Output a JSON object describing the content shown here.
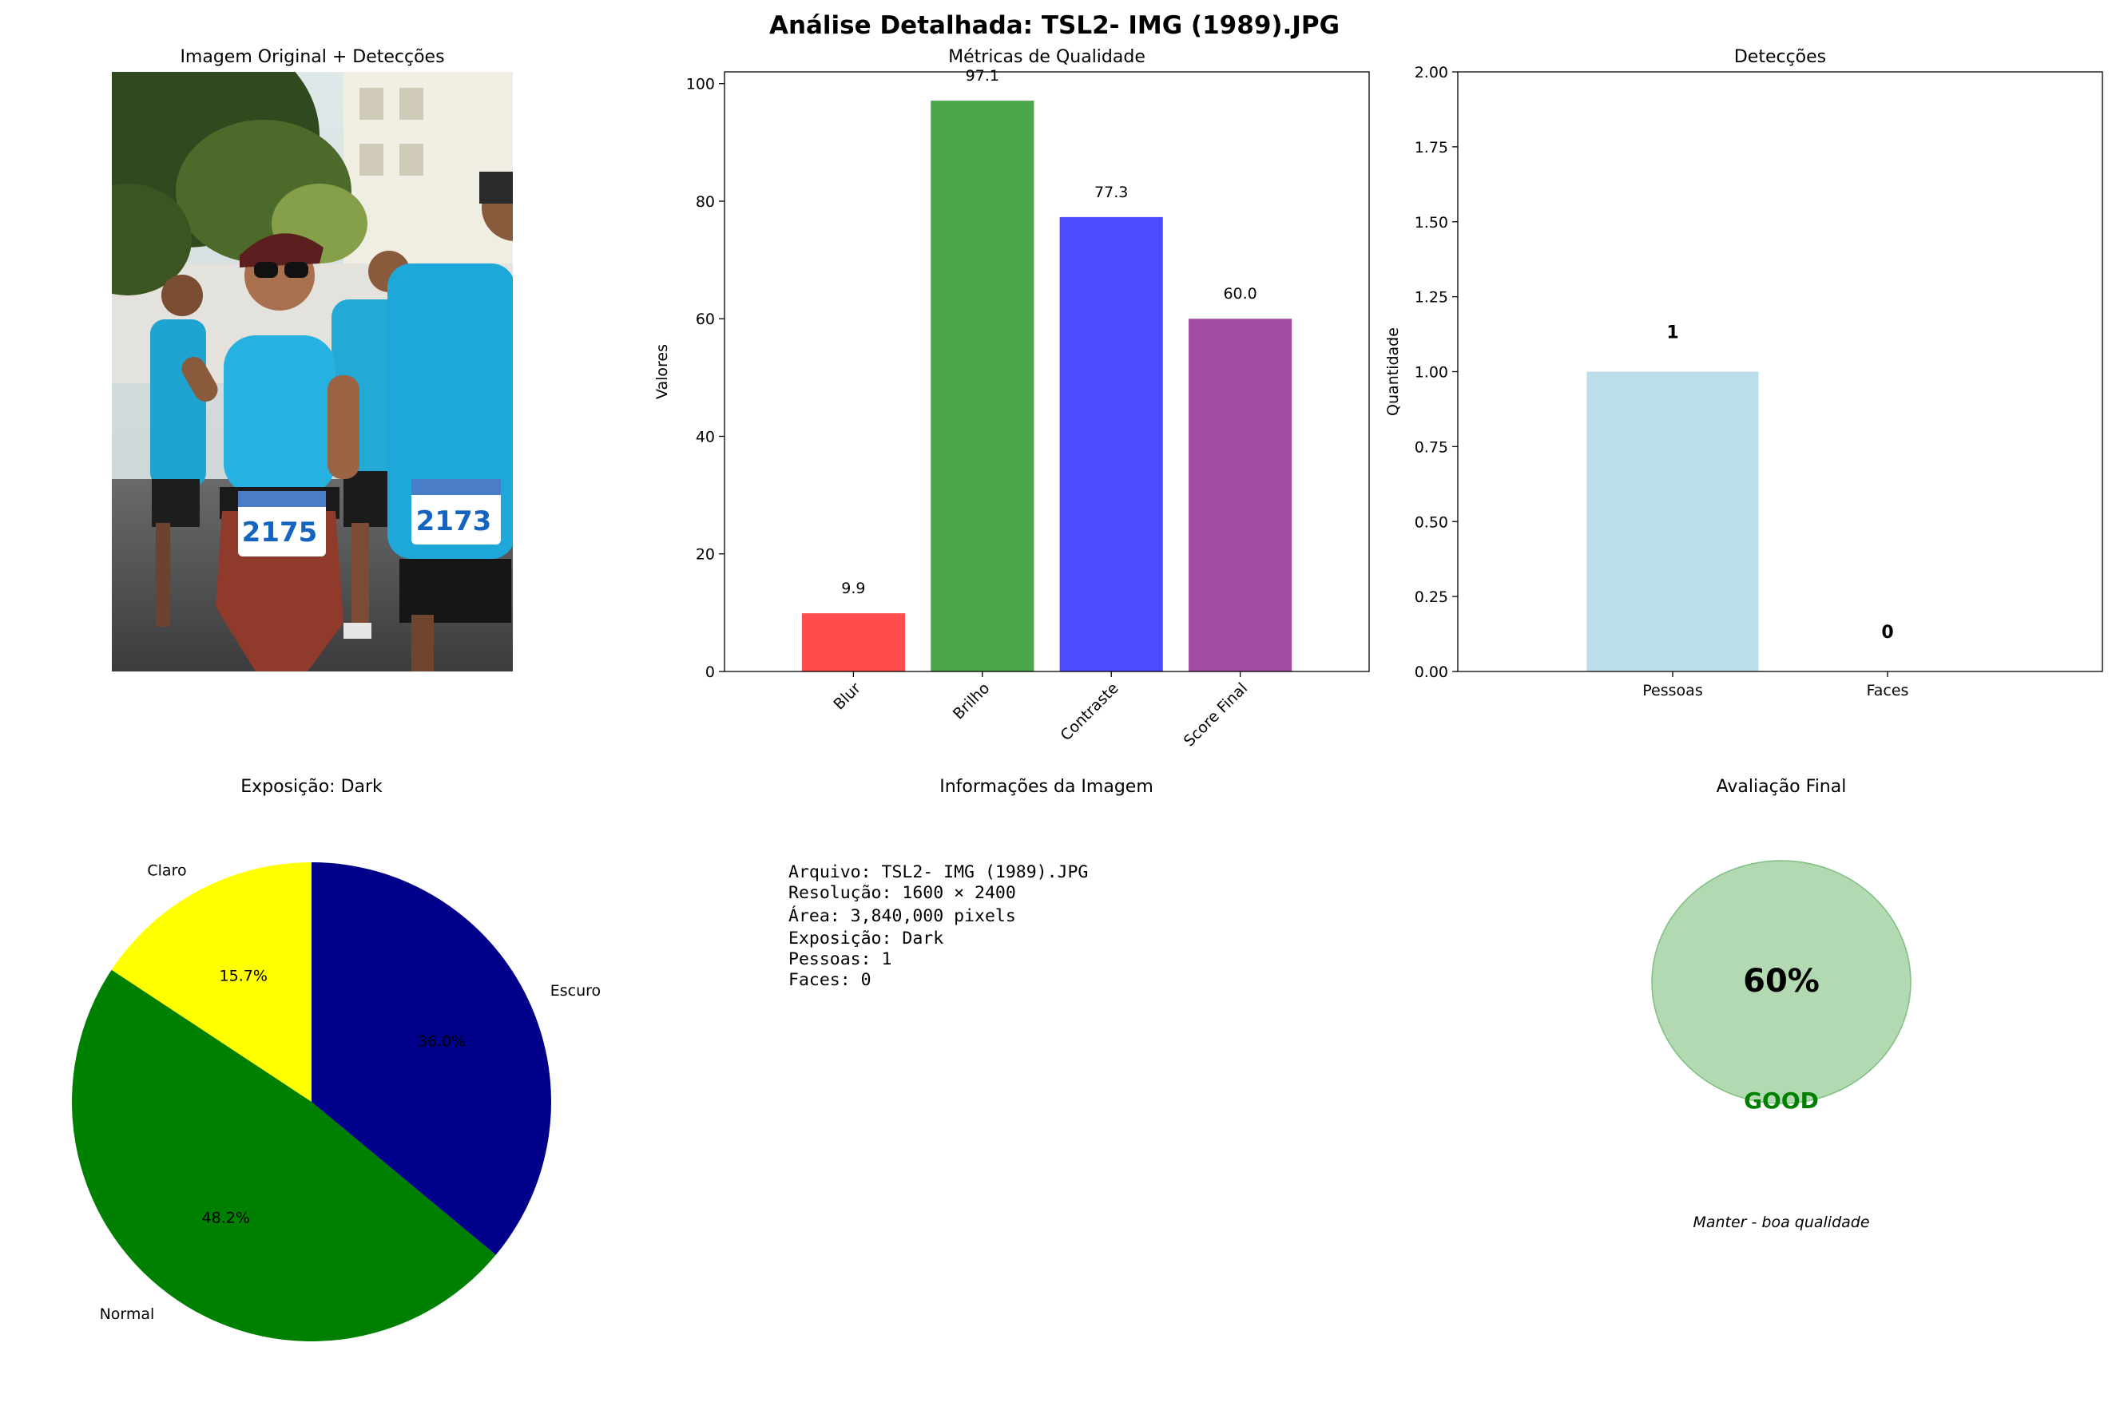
{
  "figure": {
    "suptitle": "Análise Detalhada: TSL2- IMG  (1989).JPG"
  },
  "photo_panel": {
    "title": "Imagem Original + Detecções",
    "bibs": [
      "2175",
      "2173"
    ]
  },
  "info_panel": {
    "title": "Informações da Imagem",
    "lines": [
      "Arquivo: TSL2- IMG  (1989).JPG",
      "Resolução: 1600 × 2400",
      "Área: 3,840,000 pixels",
      "Exposição: Dark",
      "Pessoas: 1",
      "Faces: 0"
    ]
  },
  "final_panel": {
    "title": "Avaliação Final",
    "score_text": "60%",
    "grade": "GOOD",
    "recommendation": "Manter - boa qualidade",
    "circle_color": "#b3d9b3",
    "grade_color": "#008000"
  },
  "chart_data": [
    {
      "id": "quality",
      "type": "bar",
      "title": "Métricas de Qualidade",
      "xlabel": "",
      "ylabel": "Valores",
      "categories": [
        "Blur",
        "Brilho",
        "Contraste",
        "Score Final"
      ],
      "values": [
        9.9,
        97.1,
        77.3,
        60.0
      ],
      "value_labels": [
        "9.9",
        "97.1",
        "77.3",
        "60.0"
      ],
      "colors": [
        "#ff4c4c",
        "#4ca64c",
        "#4c4cff",
        "#a34ca3"
      ],
      "ylim": [
        0,
        102
      ],
      "yticks": [
        0,
        20,
        40,
        60,
        80,
        100
      ],
      "ytick_labels": [
        "0",
        "20",
        "40",
        "60",
        "80",
        "100"
      ]
    },
    {
      "id": "detections",
      "type": "bar",
      "title": "Detecções",
      "xlabel": "",
      "ylabel": "Quantidade",
      "categories": [
        "Pessoas",
        "Faces"
      ],
      "values": [
        1,
        0
      ],
      "value_labels": [
        "1",
        "0"
      ],
      "colors": [
        "#bcdeea",
        "#bcdeea"
      ],
      "ylim": [
        0,
        2
      ],
      "yticks": [
        0,
        0.25,
        0.5,
        0.75,
        1.0,
        1.25,
        1.5,
        1.75,
        2.0
      ],
      "ytick_labels": [
        "0.00",
        "0.25",
        "0.50",
        "0.75",
        "1.00",
        "1.25",
        "1.50",
        "1.75",
        "2.00"
      ]
    },
    {
      "id": "exposure",
      "type": "pie",
      "title": "Exposição: Dark",
      "labels": [
        "Claro",
        "Normal",
        "Escuro"
      ],
      "values": [
        15.7,
        48.2,
        36.0
      ],
      "pct_labels": [
        "15.7%",
        "48.2%",
        "36.0%"
      ],
      "colors": [
        "#ffff00",
        "#008000",
        "#00008b"
      ]
    }
  ]
}
